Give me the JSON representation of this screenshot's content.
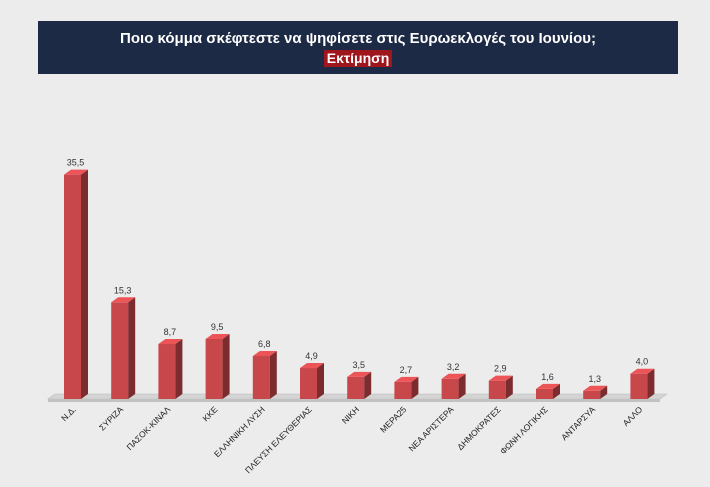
{
  "header": {
    "title": "Ποιο κόμμα σκέφτεστε να ψηφίσετε στις Ευρωεκλογές του Ιουνίου;",
    "subtitle": "Εκτίμηση",
    "background_color": "#1d2a45",
    "subtitle_background_color": "#a0161d"
  },
  "chart_data": {
    "type": "bar",
    "categories": [
      "Ν.Δ.",
      "ΣΥΡΙΖΑ",
      "ΠΑΣΟΚ-ΚΙΝΑΛ",
      "ΚΚΕ",
      "ΕΛΛΗΝΙΚΗ ΛΥΣΗ",
      "ΠΛΕΥΣΗ ΕΛΕΥΘΕΡΙΑΣ",
      "ΝΙΚΗ",
      "ΜΕΡΑ25",
      "ΝΕΑ ΑΡΙΣΤΕΡΑ",
      "ΔΗΜΟΚΡΑΤΕΣ",
      "ΦΩΝΗ ΛΟΓΙΚΗΣ",
      "ΑΝΤΑΡΣΥΑ",
      "ΑΛΛΟ"
    ],
    "values": [
      35.5,
      15.3,
      8.7,
      9.5,
      6.8,
      4.9,
      3.5,
      2.7,
      3.2,
      2.9,
      1.6,
      1.3,
      4.0
    ],
    "value_labels": [
      "35,5",
      "15,3",
      "8,7",
      "9,5",
      "6,8",
      "4,9",
      "3,5",
      "2,7",
      "3,2",
      "2,9",
      "1,6",
      "1,3",
      "4,0"
    ],
    "ylim": [
      0,
      40
    ],
    "bar_color": "#c8474a",
    "grid": false,
    "three_d": true
  }
}
